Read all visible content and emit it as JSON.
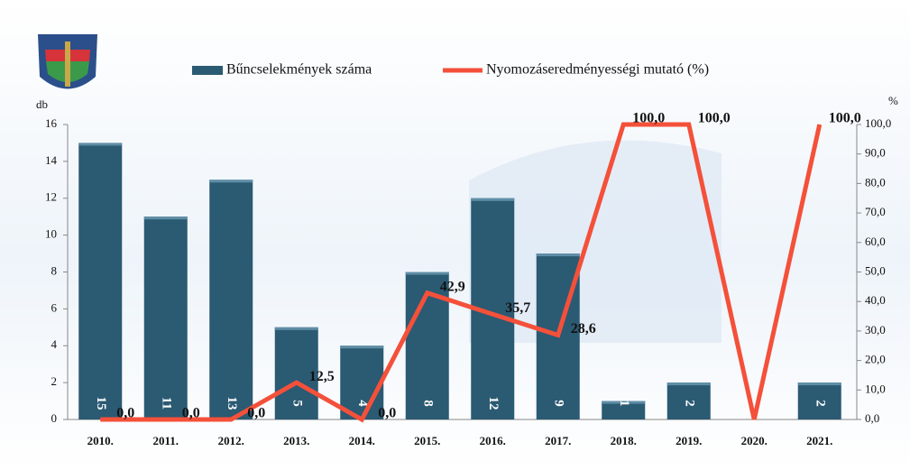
{
  "chart_data": {
    "type": "bar_line",
    "categories": [
      "2010.",
      "2011.",
      "2012.",
      "2013.",
      "2014.",
      "2015.",
      "2016.",
      "2017.",
      "2018.",
      "2019.",
      "2020.",
      "2021."
    ],
    "series": [
      {
        "name": "Bűncselekmények száma",
        "color": "#2b5a73",
        "type": "bar",
        "values": [
          15,
          11,
          13,
          5,
          4,
          8,
          12,
          9,
          1,
          2,
          null,
          2
        ]
      },
      {
        "name": "Nyomozáseredményességi mutató (%)",
        "color": "#f4503a",
        "type": "line",
        "axis": "y2",
        "values": [
          0,
          0,
          0,
          12.5,
          0,
          42.9,
          35.7,
          28.6,
          100,
          100,
          0,
          100
        ],
        "value_labels": [
          "0,0",
          "0,0",
          "0,0",
          "12,5",
          "0,0",
          "42,9",
          "35,7",
          "28,6",
          "100,0",
          "100,0",
          null,
          "100,0"
        ]
      }
    ],
    "ylabel": "db",
    "y2label": "%",
    "ylim": [
      0,
      16
    ],
    "yticks": [
      0,
      2,
      4,
      6,
      8,
      10,
      12,
      14,
      16
    ],
    "y2lim": [
      0,
      100
    ],
    "y2ticks": [
      {
        "value": 0,
        "label": "0,0"
      },
      {
        "value": 10,
        "label": "10,0"
      },
      {
        "value": 20,
        "label": "20,0"
      },
      {
        "value": 30,
        "label": "30,0"
      },
      {
        "value": 40,
        "label": "40,0"
      },
      {
        "value": 50,
        "label": "50,0"
      },
      {
        "value": 60,
        "label": "60,0"
      },
      {
        "value": 70,
        "label": "70,0"
      },
      {
        "value": 80,
        "label": "80,0"
      },
      {
        "value": 90,
        "label": "90,0"
      },
      {
        "value": 100,
        "label": "100,0"
      }
    ],
    "legend": "top"
  }
}
